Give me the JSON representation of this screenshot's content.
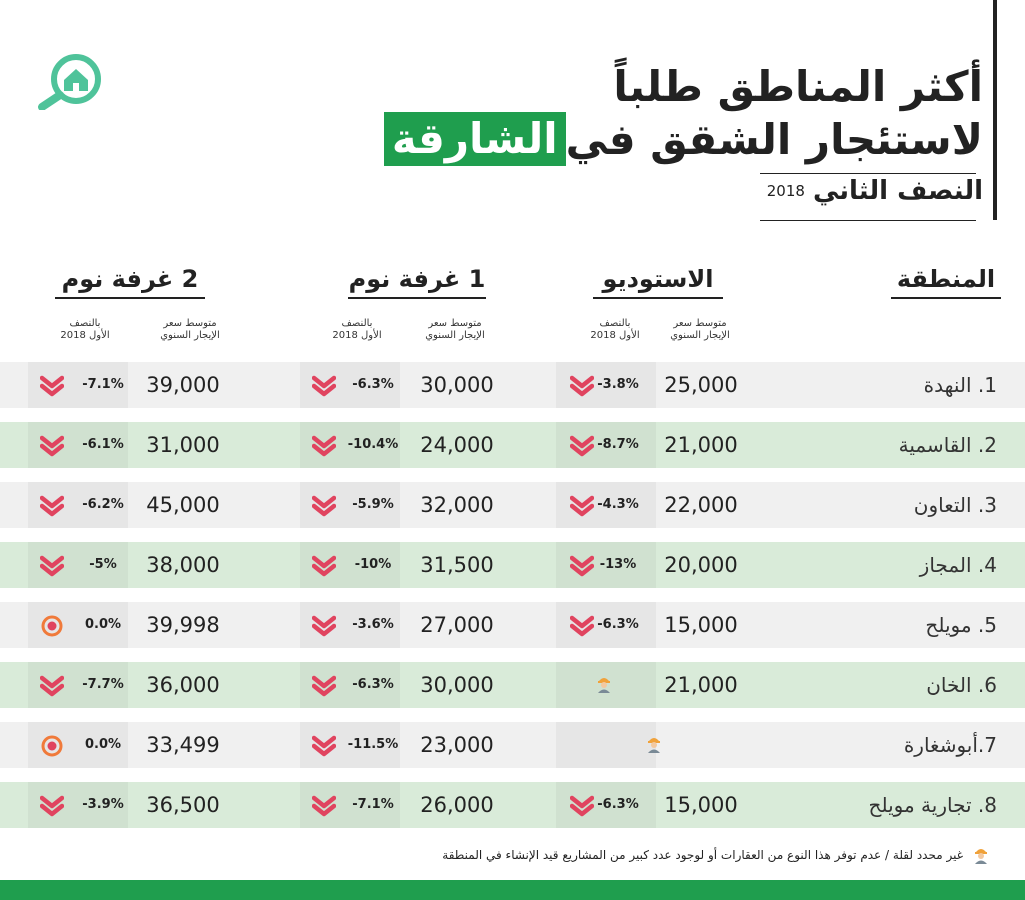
{
  "title": {
    "line1": "أكثر المناطق طلباً",
    "line2_prefix": "لاستئجار الشقق في",
    "line2_highlight": "الشارقة",
    "subtitle": "النصف الثاني",
    "year": "2018"
  },
  "columns": {
    "area": "المنطقة",
    "studio": "الاستوديو",
    "one_bed": "1 غرفة نوم",
    "two_bed": "2 غرفة نوم",
    "price_sub_1": "متوسط سعر",
    "price_sub_2": "الإيجار السنوي",
    "change_sub_1": "بالنصف",
    "change_sub_2": "الأول 2018"
  },
  "rows": [
    {
      "area": "1. النهدة",
      "studio": {
        "price": "25,000",
        "change": "-3.8%",
        "icon": "down-chevron"
      },
      "one": {
        "price": "30,000",
        "change": "-6.3%",
        "icon": "down-chevron"
      },
      "two": {
        "price": "39,000",
        "change": "-7.1%",
        "icon": "down-chevron"
      }
    },
    {
      "area": "2. القاسمية",
      "studio": {
        "price": "21,000",
        "change": "-8.7%",
        "icon": "down-chevron"
      },
      "one": {
        "price": "24,000",
        "change": "-10.4%",
        "icon": "down-chevron"
      },
      "two": {
        "price": "31,000",
        "change": "-6.1%",
        "icon": "down-chevron"
      }
    },
    {
      "area": "3. التعاون",
      "studio": {
        "price": "22,000",
        "change": "-4.3%",
        "icon": "down-chevron"
      },
      "one": {
        "price": "32,000",
        "change": "-5.9%",
        "icon": "down-chevron"
      },
      "two": {
        "price": "45,000",
        "change": "-6.2%",
        "icon": "down-chevron"
      }
    },
    {
      "area": "4. المجاز",
      "studio": {
        "price": "20,000",
        "change": "-13%",
        "icon": "down-chevron"
      },
      "one": {
        "price": "31,500",
        "change": "-10%",
        "icon": "down-chevron"
      },
      "two": {
        "price": "38,000",
        "change": "-5%",
        "icon": "down-chevron"
      }
    },
    {
      "area": "5. مويلح",
      "studio": {
        "price": "15,000",
        "change": "-6.3%",
        "icon": "down-chevron"
      },
      "one": {
        "price": "27,000",
        "change": "-3.6%",
        "icon": "down-chevron"
      },
      "two": {
        "price": "39,998",
        "change": "0.0%",
        "icon": "neutral-dot"
      }
    },
    {
      "area": "6. الخان",
      "studio": {
        "price": "21,000",
        "change": "",
        "icon": "worker"
      },
      "one": {
        "price": "30,000",
        "change": "-6.3%",
        "icon": "down-chevron"
      },
      "two": {
        "price": "36,000",
        "change": "-7.7%",
        "icon": "down-chevron"
      }
    },
    {
      "area": "7.أبوشغارة",
      "studio": {
        "price": "",
        "change": "",
        "icon": "worker-center"
      },
      "one": {
        "price": "23,000",
        "change": "-11.5%",
        "icon": "down-chevron"
      },
      "two": {
        "price": "33,499",
        "change": "0.0%",
        "icon": "neutral-dot"
      }
    },
    {
      "area": "8. تجارية مويلح",
      "studio": {
        "price": "15,000",
        "change": "-6.3%",
        "icon": "down-chevron"
      },
      "one": {
        "price": "26,000",
        "change": "-7.1%",
        "icon": "down-chevron"
      },
      "two": {
        "price": "36,500",
        "change": "-3.9%",
        "icon": "down-chevron"
      }
    }
  ],
  "footnote": "غير محدد لقلة / عدم توفر هذا النوع من العقارات أو لوجود عدد كبير من المشاريع قيد الإنشاء في المنطقة",
  "colors": {
    "green": "#1f9e4e",
    "logo": "#4fc39a",
    "down": "#e0445f",
    "dot": "#f07a3a"
  }
}
